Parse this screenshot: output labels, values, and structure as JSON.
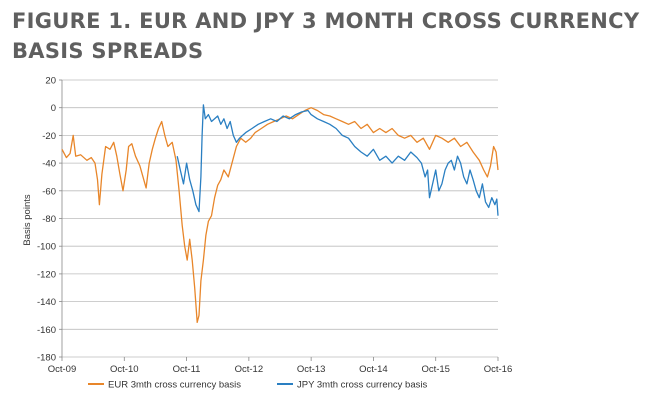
{
  "title_line1": "FIGURE 1. EUR AND JPY 3 MONTH CROSS CURRENCY",
  "title_line2": "BASIS SPREADS",
  "chart_data": {
    "type": "line",
    "ylabel": "Basis points",
    "xlabel": "",
    "ylim": [
      -180,
      20
    ],
    "yticks": [
      20,
      0,
      -20,
      -40,
      -60,
      -80,
      -100,
      -120,
      -140,
      -160,
      -180
    ],
    "xlim": [
      2009.75,
      2016.75
    ],
    "xticks": [
      {
        "x": 2009.75,
        "label": "Oct-09"
      },
      {
        "x": 2010.75,
        "label": "Oct-10"
      },
      {
        "x": 2011.75,
        "label": "Oct-11"
      },
      {
        "x": 2012.75,
        "label": "Oct-12"
      },
      {
        "x": 2013.75,
        "label": "Oct-13"
      },
      {
        "x": 2014.75,
        "label": "Oct-14"
      },
      {
        "x": 2015.75,
        "label": "Oct-15"
      },
      {
        "x": 2016.75,
        "label": "Oct-16"
      }
    ],
    "grid": "horizontal",
    "legend_position": "bottom",
    "series": [
      {
        "name": "EUR 3mth cross currency basis",
        "color": "#e8862a",
        "points": [
          [
            2009.75,
            -30
          ],
          [
            2009.82,
            -36
          ],
          [
            2009.88,
            -33
          ],
          [
            2009.93,
            -20
          ],
          [
            2009.97,
            -35
          ],
          [
            2010.05,
            -34
          ],
          [
            2010.15,
            -38
          ],
          [
            2010.22,
            -36
          ],
          [
            2010.28,
            -40
          ],
          [
            2010.32,
            -52
          ],
          [
            2010.35,
            -70
          ],
          [
            2010.39,
            -48
          ],
          [
            2010.45,
            -28
          ],
          [
            2010.52,
            -30
          ],
          [
            2010.58,
            -25
          ],
          [
            2010.63,
            -35
          ],
          [
            2010.68,
            -48
          ],
          [
            2010.73,
            -60
          ],
          [
            2010.78,
            -45
          ],
          [
            2010.82,
            -28
          ],
          [
            2010.87,
            -26
          ],
          [
            2010.93,
            -35
          ],
          [
            2011.0,
            -42
          ],
          [
            2011.05,
            -50
          ],
          [
            2011.1,
            -58
          ],
          [
            2011.15,
            -40
          ],
          [
            2011.2,
            -30
          ],
          [
            2011.25,
            -22
          ],
          [
            2011.3,
            -15
          ],
          [
            2011.35,
            -10
          ],
          [
            2011.4,
            -20
          ],
          [
            2011.45,
            -28
          ],
          [
            2011.52,
            -25
          ],
          [
            2011.58,
            -38
          ],
          [
            2011.63,
            -60
          ],
          [
            2011.68,
            -85
          ],
          [
            2011.72,
            -100
          ],
          [
            2011.76,
            -110
          ],
          [
            2011.8,
            -95
          ],
          [
            2011.84,
            -110
          ],
          [
            2011.88,
            -130
          ],
          [
            2011.92,
            -155
          ],
          [
            2011.95,
            -150
          ],
          [
            2011.98,
            -125
          ],
          [
            2012.02,
            -110
          ],
          [
            2012.06,
            -92
          ],
          [
            2012.1,
            -82
          ],
          [
            2012.15,
            -78
          ],
          [
            2012.2,
            -65
          ],
          [
            2012.25,
            -56
          ],
          [
            2012.3,
            -52
          ],
          [
            2012.35,
            -45
          ],
          [
            2012.42,
            -50
          ],
          [
            2012.48,
            -40
          ],
          [
            2012.55,
            -28
          ],
          [
            2012.62,
            -22
          ],
          [
            2012.7,
            -25
          ],
          [
            2012.78,
            -22
          ],
          [
            2012.85,
            -18
          ],
          [
            2012.95,
            -15
          ],
          [
            2013.05,
            -12
          ],
          [
            2013.15,
            -10
          ],
          [
            2013.25,
            -8
          ],
          [
            2013.35,
            -6
          ],
          [
            2013.45,
            -8
          ],
          [
            2013.55,
            -5
          ],
          [
            2013.65,
            -2
          ],
          [
            2013.75,
            0
          ],
          [
            2013.85,
            -2
          ],
          [
            2013.95,
            -5
          ],
          [
            2014.05,
            -6
          ],
          [
            2014.15,
            -8
          ],
          [
            2014.25,
            -10
          ],
          [
            2014.35,
            -12
          ],
          [
            2014.45,
            -10
          ],
          [
            2014.55,
            -15
          ],
          [
            2014.65,
            -12
          ],
          [
            2014.75,
            -18
          ],
          [
            2014.85,
            -15
          ],
          [
            2014.95,
            -18
          ],
          [
            2015.05,
            -15
          ],
          [
            2015.15,
            -20
          ],
          [
            2015.25,
            -22
          ],
          [
            2015.35,
            -20
          ],
          [
            2015.45,
            -25
          ],
          [
            2015.55,
            -22
          ],
          [
            2015.65,
            -30
          ],
          [
            2015.75,
            -20
          ],
          [
            2015.85,
            -22
          ],
          [
            2015.95,
            -25
          ],
          [
            2016.05,
            -22
          ],
          [
            2016.15,
            -28
          ],
          [
            2016.25,
            -25
          ],
          [
            2016.35,
            -32
          ],
          [
            2016.45,
            -38
          ],
          [
            2016.52,
            -45
          ],
          [
            2016.58,
            -50
          ],
          [
            2016.63,
            -42
          ],
          [
            2016.68,
            -28
          ],
          [
            2016.72,
            -32
          ],
          [
            2016.75,
            -45
          ]
        ]
      },
      {
        "name": "JPY 3mth cross currency basis",
        "color": "#2a7fc2",
        "points": [
          [
            2011.6,
            -35
          ],
          [
            2011.65,
            -45
          ],
          [
            2011.7,
            -55
          ],
          [
            2011.75,
            -40
          ],
          [
            2011.8,
            -52
          ],
          [
            2011.85,
            -60
          ],
          [
            2011.9,
            -70
          ],
          [
            2011.95,
            -75
          ],
          [
            2011.98,
            -50
          ],
          [
            2012.0,
            -20
          ],
          [
            2012.02,
            2
          ],
          [
            2012.05,
            -8
          ],
          [
            2012.1,
            -5
          ],
          [
            2012.15,
            -10
          ],
          [
            2012.2,
            -8
          ],
          [
            2012.25,
            -6
          ],
          [
            2012.3,
            -12
          ],
          [
            2012.35,
            -8
          ],
          [
            2012.4,
            -15
          ],
          [
            2012.45,
            -10
          ],
          [
            2012.5,
            -20
          ],
          [
            2012.55,
            -25
          ],
          [
            2012.6,
            -22
          ],
          [
            2012.65,
            -20
          ],
          [
            2012.7,
            -18
          ],
          [
            2012.8,
            -15
          ],
          [
            2012.9,
            -12
          ],
          [
            2013.0,
            -10
          ],
          [
            2013.1,
            -8
          ],
          [
            2013.2,
            -10
          ],
          [
            2013.3,
            -6
          ],
          [
            2013.4,
            -8
          ],
          [
            2013.5,
            -5
          ],
          [
            2013.6,
            -3
          ],
          [
            2013.7,
            -2
          ],
          [
            2013.75,
            -5
          ],
          [
            2013.85,
            -8
          ],
          [
            2013.95,
            -10
          ],
          [
            2014.05,
            -12
          ],
          [
            2014.15,
            -15
          ],
          [
            2014.25,
            -20
          ],
          [
            2014.35,
            -22
          ],
          [
            2014.45,
            -28
          ],
          [
            2014.55,
            -32
          ],
          [
            2014.65,
            -35
          ],
          [
            2014.75,
            -30
          ],
          [
            2014.85,
            -38
          ],
          [
            2014.95,
            -35
          ],
          [
            2015.05,
            -40
          ],
          [
            2015.15,
            -35
          ],
          [
            2015.25,
            -38
          ],
          [
            2015.35,
            -32
          ],
          [
            2015.45,
            -36
          ],
          [
            2015.52,
            -40
          ],
          [
            2015.58,
            -50
          ],
          [
            2015.62,
            -45
          ],
          [
            2015.65,
            -65
          ],
          [
            2015.7,
            -55
          ],
          [
            2015.75,
            -45
          ],
          [
            2015.8,
            -60
          ],
          [
            2015.85,
            -55
          ],
          [
            2015.9,
            -45
          ],
          [
            2015.95,
            -40
          ],
          [
            2016.0,
            -38
          ],
          [
            2016.05,
            -45
          ],
          [
            2016.1,
            -35
          ],
          [
            2016.15,
            -40
          ],
          [
            2016.2,
            -50
          ],
          [
            2016.25,
            -55
          ],
          [
            2016.3,
            -45
          ],
          [
            2016.35,
            -52
          ],
          [
            2016.4,
            -60
          ],
          [
            2016.45,
            -65
          ],
          [
            2016.5,
            -55
          ],
          [
            2016.55,
            -68
          ],
          [
            2016.6,
            -72
          ],
          [
            2016.65,
            -65
          ],
          [
            2016.7,
            -70
          ],
          [
            2016.73,
            -66
          ],
          [
            2016.75,
            -78
          ]
        ]
      }
    ]
  }
}
